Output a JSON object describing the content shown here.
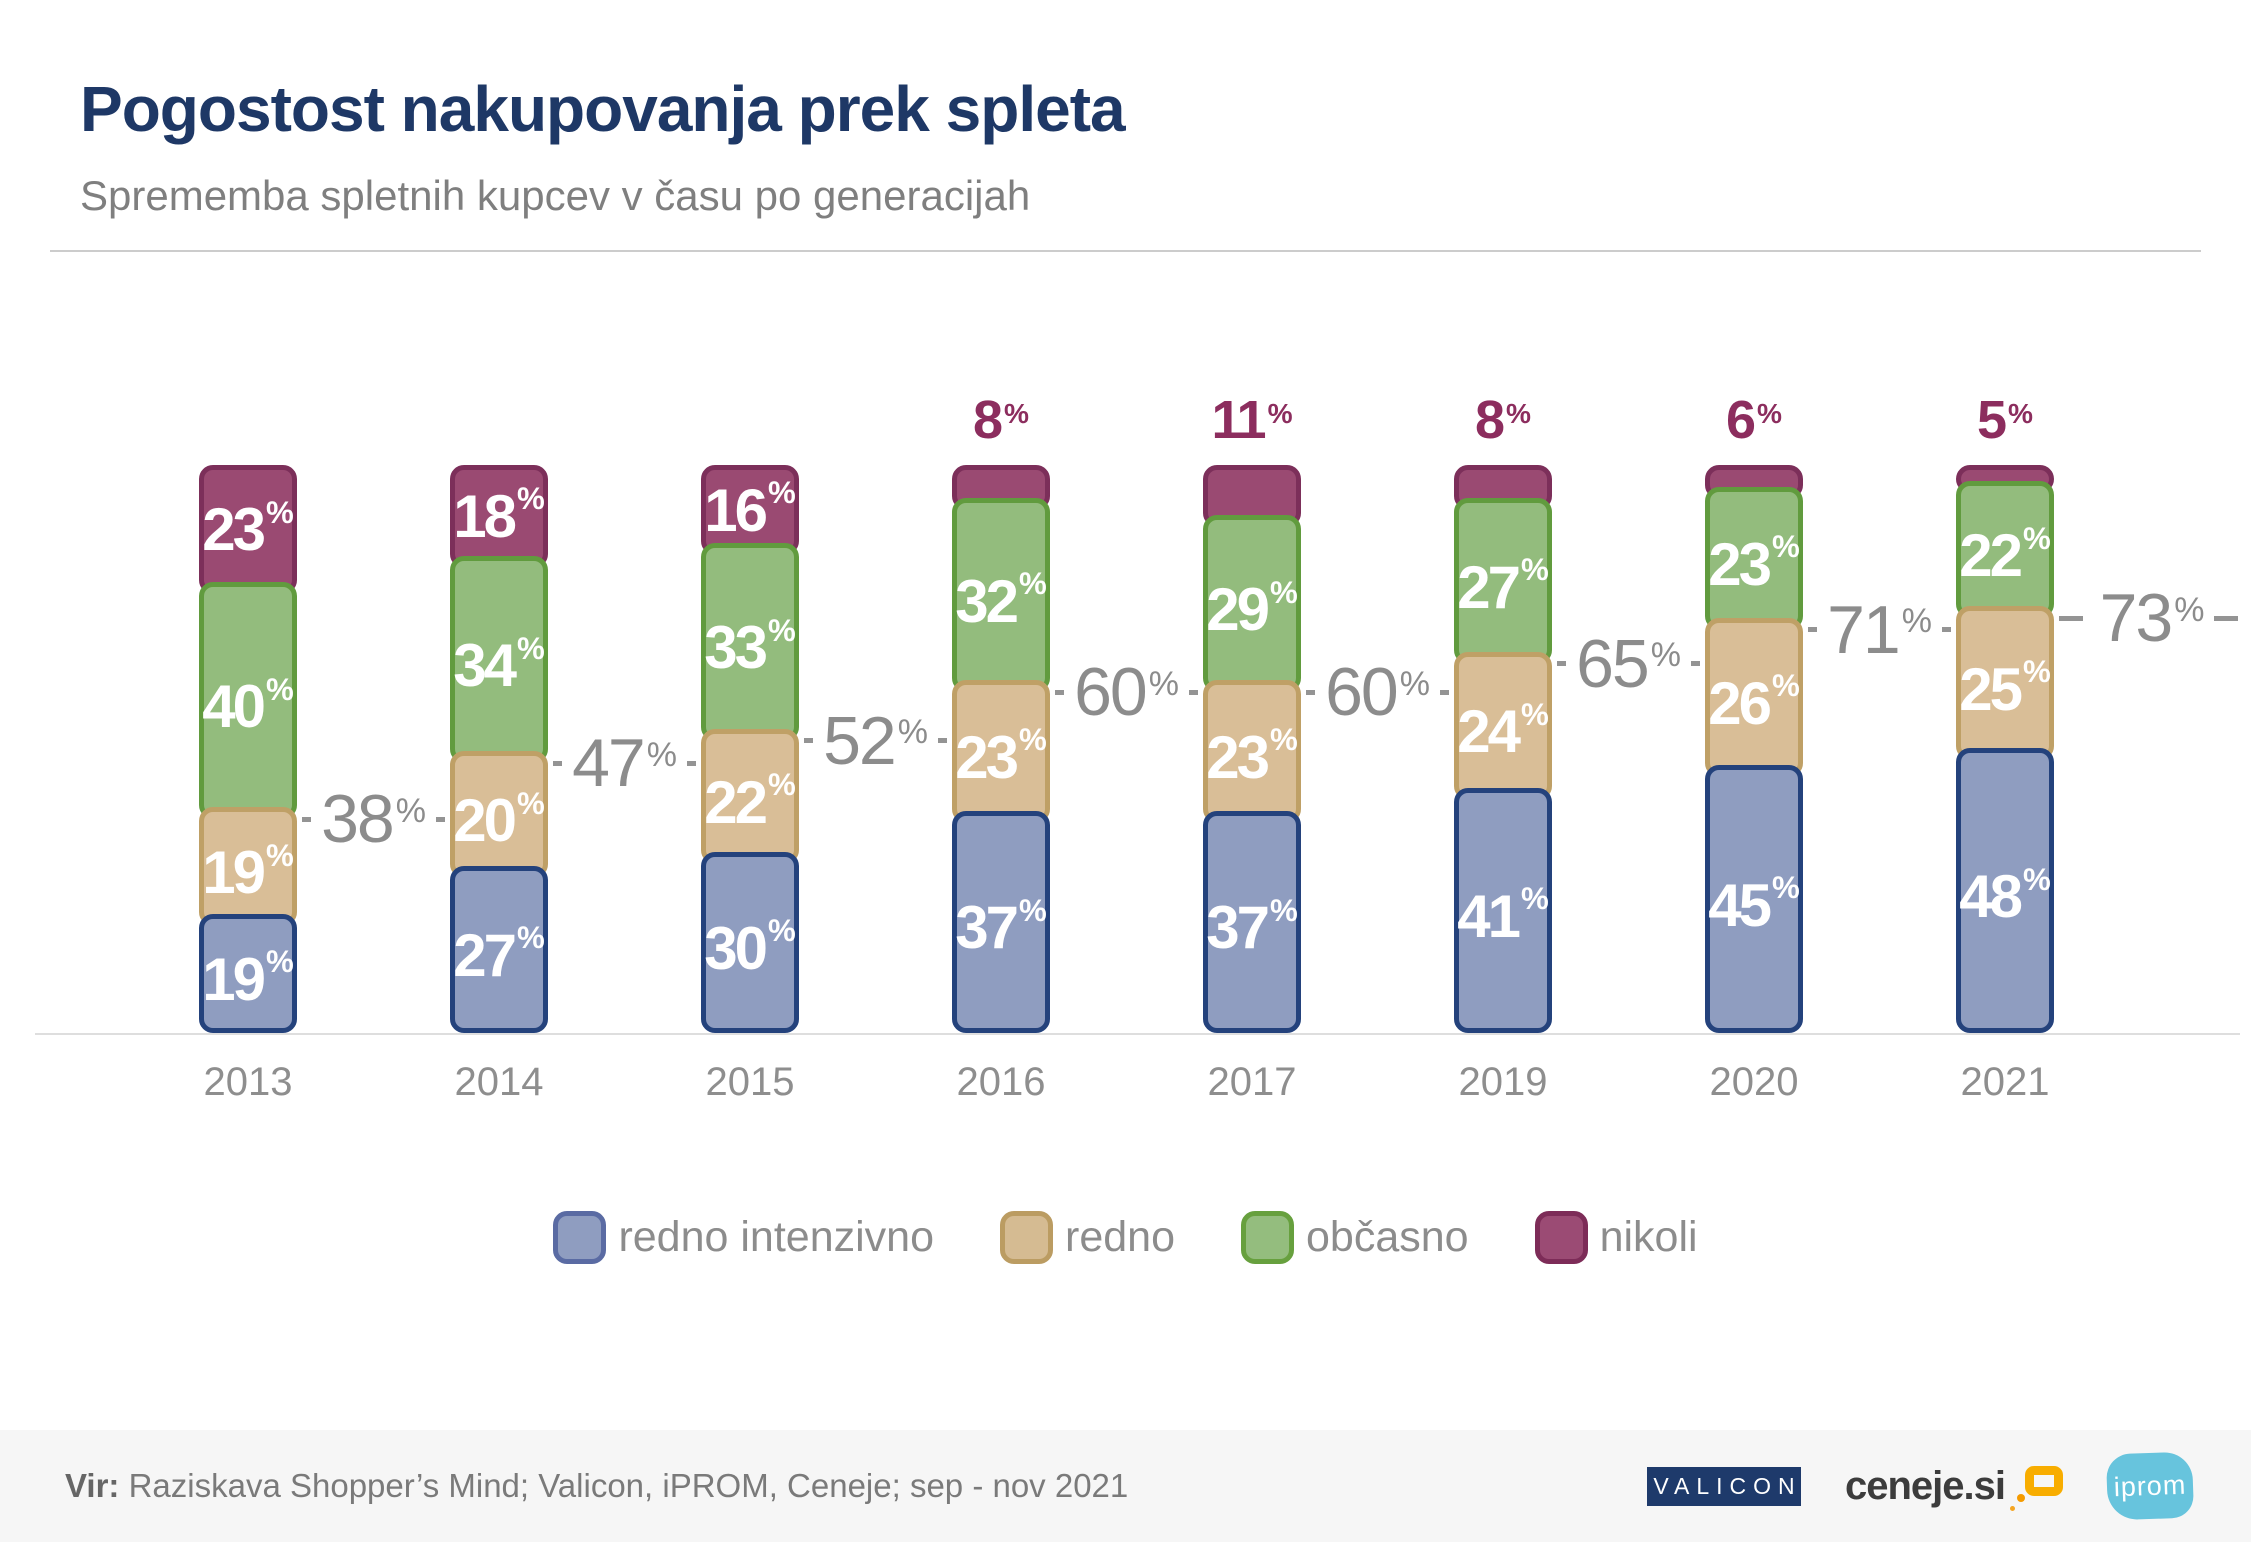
{
  "header": {
    "title": "Pogostost nakupovanja prek spleta",
    "subtitle": "Sprememba spletnih kupcev v času po generacijah",
    "title_color": "#1e3866"
  },
  "chart_data": {
    "type": "bar",
    "stacked": true,
    "title": "Pogostost nakupovanja prek spleta",
    "categories": [
      "2013",
      "2014",
      "2015",
      "2016",
      "2017",
      "2019",
      "2020",
      "2021"
    ],
    "series": [
      {
        "name": "redno intenzivno",
        "fill": "#8f9dc0",
        "border": "#24427c",
        "values": [
          19,
          27,
          30,
          37,
          37,
          41,
          45,
          48
        ]
      },
      {
        "name": "redno",
        "fill": "#d9be97",
        "border": "#bfa066",
        "values": [
          19,
          20,
          22,
          23,
          23,
          24,
          26,
          25
        ]
      },
      {
        "name": "občasno",
        "fill": "#93bc7d",
        "border": "#619b3e",
        "values": [
          40,
          34,
          33,
          32,
          29,
          27,
          23,
          22
        ]
      },
      {
        "name": "nikoli",
        "fill": "#9a4a72",
        "border": "#7c2f5a",
        "values": [
          23,
          18,
          16,
          8,
          11,
          8,
          6,
          5
        ]
      }
    ],
    "value_suffix": "%",
    "ylim": [
      0,
      100
    ],
    "grid": false,
    "legend_position": "bottom",
    "connector_labels": {
      "note": "cumulative share of redno intenzivno + redno, dashed line right of each bar",
      "values": [
        38,
        47,
        52,
        60,
        60,
        65,
        71,
        73
      ],
      "color": "#8c8c8c"
    },
    "outside_label_color": "#8c2d5e",
    "inside_label_color": "#ffffff"
  },
  "legend": {
    "items": [
      {
        "label": "redno intenzivno",
        "fill": "#8f9dc0",
        "border": "#5a6ba3"
      },
      {
        "label": "redno",
        "fill": "#d5bb92",
        "border": "#bb9c62"
      },
      {
        "label": "občasno",
        "fill": "#94bd7e",
        "border": "#67a03e"
      },
      {
        "label": "nikoli",
        "fill": "#9b4b74",
        "border": "#7d2c58"
      }
    ]
  },
  "footer": {
    "source_label": "Vir:",
    "source_text": " Raziskava Shopper’s Mind; Valicon, iPROM, Ceneje; sep - nov 2021",
    "logos": {
      "valicon": {
        "text": "VALICON",
        "bg": "#1e3a6b"
      },
      "ceneje": {
        "text": "ceneje.si",
        "accent": "#f8ad00"
      },
      "iprom": {
        "text": "iprom",
        "bg": "#67c4dd"
      }
    }
  }
}
